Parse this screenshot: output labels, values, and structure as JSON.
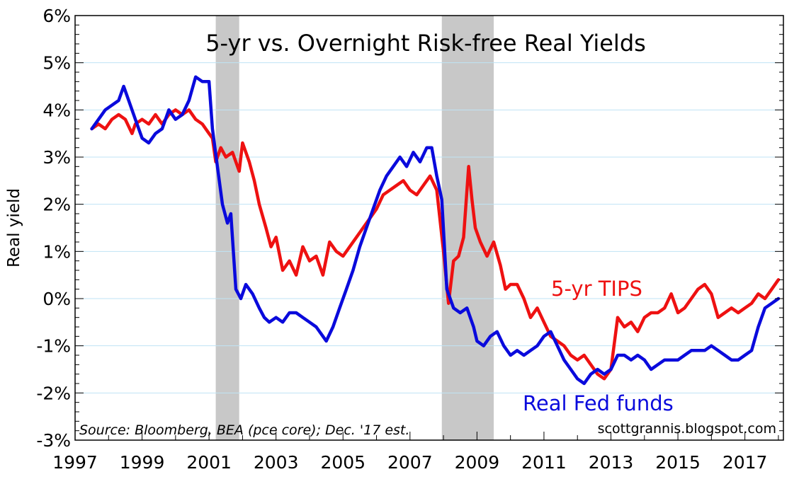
{
  "chart_data": {
    "type": "line",
    "title": "5-yr vs. Overnight Risk-free Real Yields",
    "ylabel": "Real yield",
    "xlim": [
      1997.0,
      2018.15
    ],
    "ylim": [
      -3,
      6
    ],
    "yticks": [
      6,
      5,
      4,
      3,
      2,
      1,
      0,
      -1,
      -2,
      -3
    ],
    "ytick_labels": [
      "6%",
      "5%",
      "4%",
      "3%",
      "2%",
      "1%",
      "0%",
      "-1%",
      "-2%",
      "-3%"
    ],
    "xticks": [
      1997,
      1999,
      2001,
      2003,
      2005,
      2007,
      2009,
      2011,
      2013,
      2015,
      2017
    ],
    "xtick_labels": [
      "1997",
      "1999",
      "2001",
      "2003",
      "2005",
      "2007",
      "2009",
      "2011",
      "2013",
      "2015",
      "2017"
    ],
    "grid": "horizontal",
    "recessions": [
      [
        2001.2,
        2001.9
      ],
      [
        2007.95,
        2009.5
      ]
    ],
    "colors": {
      "tips": "#ee1111",
      "fedfunds": "#0a0adc",
      "recession": "#c8c8c8",
      "grid": "#bfe3f5"
    },
    "series": [
      {
        "name": "5-yr TIPS",
        "color": "#ee1111",
        "x": [
          1997.5,
          1997.7,
          1997.9,
          1998.1,
          1998.3,
          1998.5,
          1998.7,
          1998.8,
          1999.0,
          1999.2,
          1999.4,
          1999.6,
          1999.8,
          2000.0,
          2000.2,
          2000.4,
          2000.6,
          2000.8,
          2001.0,
          2001.1,
          2001.2,
          2001.35,
          2001.5,
          2001.7,
          2001.9,
          2002.0,
          2002.2,
          2002.35,
          2002.5,
          2002.7,
          2002.85,
          2003.0,
          2003.2,
          2003.4,
          2003.6,
          2003.8,
          2004.0,
          2004.2,
          2004.4,
          2004.6,
          2004.8,
          2005.0,
          2005.2,
          2005.4,
          2005.6,
          2005.8,
          2006.0,
          2006.2,
          2006.4,
          2006.6,
          2006.8,
          2007.0,
          2007.2,
          2007.4,
          2007.6,
          2007.8,
          2008.0,
          2008.15,
          2008.3,
          2008.45,
          2008.6,
          2008.75,
          2008.85,
          2008.95,
          2009.1,
          2009.3,
          2009.5,
          2009.7,
          2009.85,
          2010.0,
          2010.2,
          2010.4,
          2010.6,
          2010.8,
          2011.0,
          2011.2,
          2011.4,
          2011.6,
          2011.8,
          2012.0,
          2012.2,
          2012.4,
          2012.6,
          2012.8,
          2013.0,
          2013.2,
          2013.4,
          2013.6,
          2013.8,
          2014.0,
          2014.2,
          2014.4,
          2014.6,
          2014.8,
          2015.0,
          2015.2,
          2015.4,
          2015.6,
          2015.8,
          2016.0,
          2016.2,
          2016.4,
          2016.6,
          2016.8,
          2017.0,
          2017.2,
          2017.4,
          2017.6,
          2017.8,
          2018.0
        ],
        "values": [
          3.6,
          3.7,
          3.6,
          3.8,
          3.9,
          3.8,
          3.5,
          3.7,
          3.8,
          3.7,
          3.9,
          3.7,
          3.9,
          4.0,
          3.9,
          4.0,
          3.8,
          3.7,
          3.5,
          3.4,
          2.9,
          3.2,
          3.0,
          3.1,
          2.7,
          3.3,
          2.9,
          2.5,
          2.0,
          1.5,
          1.1,
          1.3,
          0.6,
          0.8,
          0.5,
          1.1,
          0.8,
          0.9,
          0.5,
          1.2,
          1.0,
          0.9,
          1.1,
          1.3,
          1.5,
          1.7,
          1.9,
          2.2,
          2.3,
          2.4,
          2.5,
          2.3,
          2.2,
          2.4,
          2.6,
          2.3,
          1.0,
          -0.1,
          0.8,
          0.9,
          1.3,
          2.8,
          2.1,
          1.5,
          1.2,
          0.9,
          1.2,
          0.7,
          0.2,
          0.3,
          0.3,
          0.0,
          -0.4,
          -0.2,
          -0.5,
          -0.8,
          -0.9,
          -1.0,
          -1.2,
          -1.3,
          -1.2,
          -1.4,
          -1.6,
          -1.7,
          -1.5,
          -0.4,
          -0.6,
          -0.5,
          -0.7,
          -0.4,
          -0.3,
          -0.3,
          -0.2,
          0.1,
          -0.3,
          -0.2,
          0.0,
          0.2,
          0.3,
          0.1,
          -0.4,
          -0.3,
          -0.2,
          -0.3,
          -0.2,
          -0.1,
          0.1,
          0.0,
          0.2,
          0.4
        ]
      },
      {
        "name": "Real Fed funds",
        "color": "#0a0adc",
        "x": [
          1997.5,
          1997.7,
          1997.9,
          1998.1,
          1998.3,
          1998.45,
          1998.6,
          1998.8,
          1999.0,
          1999.2,
          1999.4,
          1999.6,
          1999.8,
          2000.0,
          2000.2,
          2000.4,
          2000.6,
          2000.8,
          2001.0,
          2001.1,
          2001.25,
          2001.4,
          2001.55,
          2001.65,
          2001.8,
          2001.95,
          2002.1,
          2002.3,
          2002.5,
          2002.65,
          2002.8,
          2003.0,
          2003.2,
          2003.4,
          2003.6,
          2003.8,
          2004.0,
          2004.2,
          2004.4,
          2004.5,
          2004.7,
          2004.9,
          2005.1,
          2005.3,
          2005.5,
          2005.7,
          2005.9,
          2006.1,
          2006.3,
          2006.5,
          2006.7,
          2006.9,
          2007.1,
          2007.3,
          2007.5,
          2007.65,
          2007.8,
          2007.95,
          2008.1,
          2008.3,
          2008.5,
          2008.7,
          2008.9,
          2009.0,
          2009.2,
          2009.4,
          2009.6,
          2009.8,
          2010.0,
          2010.2,
          2010.4,
          2010.6,
          2010.8,
          2011.0,
          2011.2,
          2011.4,
          2011.6,
          2011.8,
          2012.0,
          2012.2,
          2012.4,
          2012.6,
          2012.8,
          2013.0,
          2013.2,
          2013.4,
          2013.6,
          2013.8,
          2014.0,
          2014.2,
          2014.4,
          2014.6,
          2014.8,
          2015.0,
          2015.2,
          2015.4,
          2015.6,
          2015.8,
          2016.0,
          2016.2,
          2016.4,
          2016.6,
          2016.8,
          2017.0,
          2017.2,
          2017.4,
          2017.6,
          2017.8,
          2018.0
        ],
        "values": [
          3.6,
          3.8,
          4.0,
          4.1,
          4.2,
          4.5,
          4.2,
          3.8,
          3.4,
          3.3,
          3.5,
          3.6,
          4.0,
          3.8,
          3.9,
          4.2,
          4.7,
          4.6,
          4.6,
          3.6,
          2.8,
          2.0,
          1.6,
          1.8,
          0.2,
          0.0,
          0.3,
          0.1,
          -0.2,
          -0.4,
          -0.5,
          -0.4,
          -0.5,
          -0.3,
          -0.3,
          -0.4,
          -0.5,
          -0.6,
          -0.8,
          -0.9,
          -0.6,
          -0.2,
          0.2,
          0.6,
          1.1,
          1.5,
          1.9,
          2.3,
          2.6,
          2.8,
          3.0,
          2.8,
          3.1,
          2.9,
          3.2,
          3.2,
          2.6,
          2.1,
          0.2,
          -0.2,
          -0.3,
          -0.2,
          -0.6,
          -0.9,
          -1.0,
          -0.8,
          -0.7,
          -1.0,
          -1.2,
          -1.1,
          -1.2,
          -1.1,
          -1.0,
          -0.8,
          -0.7,
          -1.0,
          -1.3,
          -1.5,
          -1.7,
          -1.8,
          -1.6,
          -1.5,
          -1.6,
          -1.5,
          -1.2,
          -1.2,
          -1.3,
          -1.2,
          -1.3,
          -1.5,
          -1.4,
          -1.3,
          -1.3,
          -1.3,
          -1.2,
          -1.1,
          -1.1,
          -1.1,
          -1.0,
          -1.1,
          -1.2,
          -1.3,
          -1.3,
          -1.2,
          -1.1,
          -0.6,
          -0.2,
          -0.1,
          0.0
        ]
      }
    ],
    "annotations": {
      "note": "Source: Bloomberg, BEA (pce core); Dec. '17 est.",
      "credit": "scottgrannis.blogspot.com",
      "tips_label": "5-yr TIPS",
      "fedfunds_label": "Real Fed funds"
    }
  }
}
